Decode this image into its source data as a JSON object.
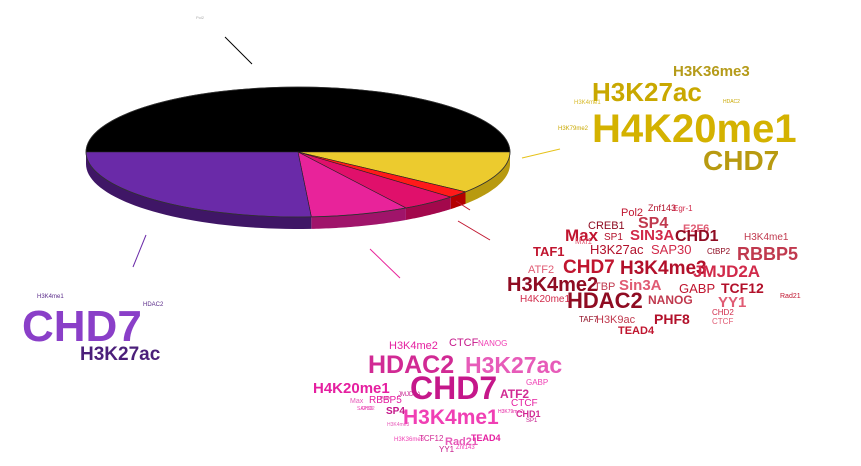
{
  "chart_data": {
    "type": "pie",
    "title": "",
    "slices": [
      {
        "id": "black",
        "value": 50.0,
        "color": "#000000",
        "side": "#111111"
      },
      {
        "id": "gold",
        "value": 10.5,
        "color": "#eccb2e",
        "side": "#b89a10"
      },
      {
        "id": "red",
        "value": 1.7,
        "color": "#ff1a1a",
        "side": "#b30000"
      },
      {
        "id": "crimson",
        "value": 4.3,
        "color": "#e0106b",
        "side": "#a3084c"
      },
      {
        "id": "magenta",
        "value": 7.5,
        "color": "#e8239a",
        "side": "#a0146a"
      },
      {
        "id": "purple",
        "value": 26.0,
        "color": "#6a2aa8",
        "side": "#3f1666"
      }
    ]
  },
  "word_clouds": {
    "gold": {
      "color": "#c9a800",
      "words": [
        {
          "text": "H3K36me3",
          "size": 15,
          "weight": 700
        },
        {
          "text": "H3K27ac",
          "size": 26,
          "weight": 700
        },
        {
          "text": "H4K20me1",
          "size": 40,
          "weight": 700
        },
        {
          "text": "CHD7",
          "size": 28,
          "weight": 700
        },
        {
          "text": "H3K4me1",
          "size": 6,
          "weight": 400
        },
        {
          "text": "H3K79me2",
          "size": 6,
          "weight": 400
        },
        {
          "text": "HDAC2",
          "size": 5,
          "weight": 400
        }
      ]
    },
    "red": {
      "color": "#c0152f",
      "words": [
        {
          "text": "Pol2",
          "size": 11,
          "weight": 400
        },
        {
          "text": "Znf143",
          "size": 9,
          "weight": 400
        },
        {
          "text": "Egr-1",
          "size": 8,
          "weight": 400
        },
        {
          "text": "CREB1",
          "size": 11,
          "weight": 400
        },
        {
          "text": "SP4",
          "size": 16,
          "weight": 700
        },
        {
          "text": "E2F6",
          "size": 11,
          "weight": 700
        },
        {
          "text": "Max",
          "size": 17,
          "weight": 700
        },
        {
          "text": "SP1",
          "size": 10,
          "weight": 400
        },
        {
          "text": "SIN3A",
          "size": 15,
          "weight": 700
        },
        {
          "text": "CHD1",
          "size": 16,
          "weight": 700
        },
        {
          "text": "H3K4me1",
          "size": 10,
          "weight": 400
        },
        {
          "text": "Mxi1",
          "size": 8,
          "weight": 400
        },
        {
          "text": "TAF1",
          "size": 13,
          "weight": 700
        },
        {
          "text": "H3K27ac",
          "size": 13,
          "weight": 400
        },
        {
          "text": "SAP30",
          "size": 13,
          "weight": 400
        },
        {
          "text": "CtBP2",
          "size": 8,
          "weight": 400
        },
        {
          "text": "RBBP5",
          "size": 18,
          "weight": 700
        },
        {
          "text": "ATF2",
          "size": 11,
          "weight": 400
        },
        {
          "text": "CHD7",
          "size": 19,
          "weight": 700
        },
        {
          "text": "H3K4me3",
          "size": 19,
          "weight": 700
        },
        {
          "text": "JMJD2A",
          "size": 17,
          "weight": 700
        },
        {
          "text": "H3K4me2",
          "size": 20,
          "weight": 700
        },
        {
          "text": "TBP",
          "size": 11,
          "weight": 400
        },
        {
          "text": "Sin3A",
          "size": 15,
          "weight": 700
        },
        {
          "text": "GABP",
          "size": 13,
          "weight": 400
        },
        {
          "text": "TCF12",
          "size": 14,
          "weight": 700
        },
        {
          "text": "H4K20me1",
          "size": 10,
          "weight": 400
        },
        {
          "text": "HDAC2",
          "size": 22,
          "weight": 700
        },
        {
          "text": "NANOG",
          "size": 12,
          "weight": 700
        },
        {
          "text": "YY1",
          "size": 15,
          "weight": 700
        },
        {
          "text": "Rad21",
          "size": 7,
          "weight": 400
        },
        {
          "text": "PHF8",
          "size": 14,
          "weight": 700
        },
        {
          "text": "CHD2",
          "size": 8,
          "weight": 400
        },
        {
          "text": "TAF7",
          "size": 8,
          "weight": 400
        },
        {
          "text": "H3K9ac",
          "size": 11,
          "weight": 400
        },
        {
          "text": "CTCF",
          "size": 8,
          "weight": 400
        },
        {
          "text": "TEAD4",
          "size": 11,
          "weight": 700
        }
      ]
    },
    "magenta": {
      "color": "#e51fa0",
      "words": [
        {
          "text": "H3K4me2",
          "size": 11,
          "weight": 400
        },
        {
          "text": "CTCF",
          "size": 11,
          "weight": 400
        },
        {
          "text": "NANOG",
          "size": 8,
          "weight": 400
        },
        {
          "text": "HDAC2",
          "size": 25,
          "weight": 700
        },
        {
          "text": "H3K27ac",
          "size": 23,
          "weight": 700
        },
        {
          "text": "H4K20me1",
          "size": 15,
          "weight": 700
        },
        {
          "text": "CHD7",
          "size": 32,
          "weight": 700
        },
        {
          "text": "GABP",
          "size": 8,
          "weight": 400
        },
        {
          "text": "ATF2",
          "size": 12,
          "weight": 700
        },
        {
          "text": "Max",
          "size": 7,
          "weight": 400
        },
        {
          "text": "RBBP5",
          "size": 10,
          "weight": 400
        },
        {
          "text": "JMJD2A",
          "size": 6,
          "weight": 400
        },
        {
          "text": "SAP30",
          "size": 5,
          "weight": 400
        },
        {
          "text": "PoD",
          "size": 5,
          "weight": 400
        },
        {
          "text": "CHD2",
          "size": 5,
          "weight": 400
        },
        {
          "text": "CTCF",
          "size": 10,
          "weight": 400
        },
        {
          "text": "SP4",
          "size": 10,
          "weight": 700
        },
        {
          "text": "H3K4me1",
          "size": 21,
          "weight": 700
        },
        {
          "text": "CHD1",
          "size": 9,
          "weight": 700
        },
        {
          "text": "H3K4me3",
          "size": 5,
          "weight": 400
        },
        {
          "text": "H3K79me2",
          "size": 5,
          "weight": 400
        },
        {
          "text": "SP1",
          "size": 6,
          "weight": 400
        },
        {
          "text": "H3K36me3",
          "size": 6,
          "weight": 400
        },
        {
          "text": "TCF12",
          "size": 8,
          "weight": 400
        },
        {
          "text": "Rad21",
          "size": 11,
          "weight": 700
        },
        {
          "text": "TEAD4",
          "size": 9,
          "weight": 700
        },
        {
          "text": "YY1",
          "size": 8,
          "weight": 400
        },
        {
          "text": "Znf143",
          "size": 6,
          "weight": 400
        }
      ]
    },
    "purple": {
      "color": "#7a3ab5",
      "words": [
        {
          "text": "H3K4me1",
          "size": 6,
          "weight": 400
        },
        {
          "text": "HDAC2",
          "size": 6,
          "weight": 400
        },
        {
          "text": "CHD7",
          "size": 44,
          "weight": 700
        },
        {
          "text": "H3K27ac",
          "size": 19,
          "weight": 700
        }
      ]
    },
    "black": {
      "color": "#aaaaaa",
      "words": [
        {
          "text": "Pol2",
          "size": 4,
          "weight": 400
        }
      ]
    }
  }
}
